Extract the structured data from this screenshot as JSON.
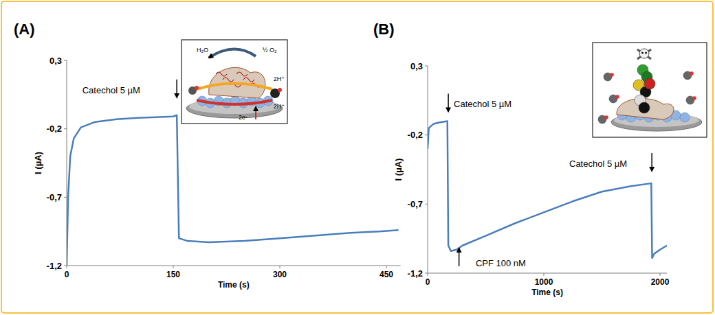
{
  "chart_data": [
    {
      "type": "line",
      "title": "(A)",
      "xlabel": "Time (s)",
      "ylabel": "I (µA)",
      "x": [
        0,
        2,
        5,
        10,
        20,
        40,
        70,
        100,
        150,
        155,
        158,
        170,
        200,
        250,
        300,
        350,
        400,
        440,
        467
      ],
      "series": [
        {
          "color": "#4a7ebb",
          "values": [
            -1.2,
            -0.7,
            -0.4,
            -0.27,
            -0.19,
            -0.15,
            -0.13,
            -0.12,
            -0.11,
            -0.1,
            -1.0,
            -1.02,
            -1.03,
            -1.02,
            -1.0,
            -0.98,
            -0.96,
            -0.95,
            -0.94
          ]
        }
      ],
      "xlim": [
        0,
        470
      ],
      "xticks": [
        0,
        150,
        300,
        450
      ],
      "ylim": [
        -1.2,
        0.3
      ],
      "yticks": [
        {
          "value": -1.2,
          "label": "-1,2"
        },
        {
          "value": -0.7,
          "label": "-0,7"
        },
        {
          "value": -0.2,
          "label": "-0,2"
        },
        {
          "value": 0.3,
          "label": "0,3"
        }
      ],
      "annotations": [
        {
          "text": "Catechol 5 µM",
          "x": 22,
          "y": 0.06,
          "arrow_x": 155
        }
      ],
      "inset_labels": [
        "H₂O",
        "½ O₂",
        "2H⁺",
        "2H⁺",
        "2e-"
      ]
    },
    {
      "type": "line",
      "title": "(B)",
      "xlabel": "Time (s)",
      "ylabel": "I (µA)",
      "x": [
        0,
        10,
        50,
        100,
        170,
        178,
        200,
        250,
        300,
        500,
        750,
        1000,
        1250,
        1500,
        1750,
        1925,
        1932,
        1950,
        2000,
        2060
      ],
      "series": [
        {
          "color": "#4a7ebb",
          "values": [
            -0.3,
            -0.15,
            -0.12,
            -0.11,
            -0.1,
            -1.0,
            -1.04,
            -1.03,
            -1.0,
            -0.93,
            -0.84,
            -0.76,
            -0.68,
            -0.61,
            -0.57,
            -0.55,
            -1.09,
            -1.06,
            -1.03,
            -1.0
          ]
        }
      ],
      "xlim": [
        0,
        2060
      ],
      "xticks": [
        0,
        1000,
        2000
      ],
      "ylim": [
        -1.2,
        0.3
      ],
      "yticks": [
        {
          "value": -1.2,
          "label": "-1,2"
        },
        {
          "value": -0.7,
          "label": "-0,7"
        },
        {
          "value": -0.2,
          "label": "-0,2"
        },
        {
          "value": 0.3,
          "label": "0,3"
        }
      ],
      "annotations": [
        {
          "text": "Catechol 5 µM",
          "x": 225,
          "y": 0.0,
          "arrow_x": 178
        },
        {
          "text": "CPF 100 nM",
          "x": 414,
          "y": -1.15,
          "arrow_x": 270
        },
        {
          "text": "Catechol 5 µM",
          "x": 1219,
          "y": -0.43,
          "arrow_x": 1930
        }
      ]
    }
  ]
}
